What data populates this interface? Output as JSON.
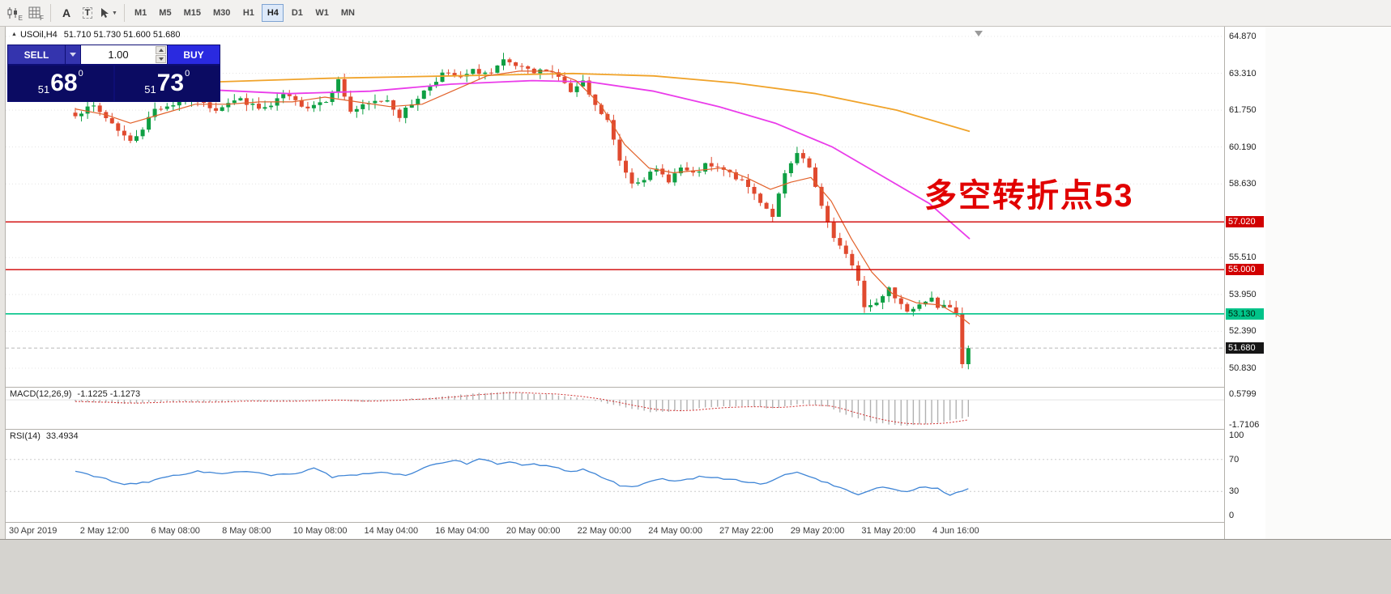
{
  "toolbar": {
    "tools": [
      {
        "id": "chart-template",
        "sub": "E"
      },
      {
        "id": "indicators",
        "sub": "F"
      },
      {
        "id": "text-tool",
        "glyph": "A"
      },
      {
        "id": "textbox-tool",
        "glyph": "T"
      },
      {
        "id": "cursor-tool",
        "caret": "▼"
      }
    ],
    "timeframes": [
      "M1",
      "M5",
      "M15",
      "M30",
      "H1",
      "H4",
      "D1",
      "W1",
      "MN"
    ],
    "active_timeframe": "H4"
  },
  "chart_header": {
    "marker": "▲",
    "symbol": "USOil,H4",
    "ohlc": "51.710 51.730 51.600 51.680"
  },
  "trade_panel": {
    "sell_label": "SELL",
    "buy_label": "BUY",
    "volume": "1.00",
    "sell_price": {
      "small": "51",
      "big": "68",
      "sup": "0"
    },
    "buy_price": {
      "small": "51",
      "big": "73",
      "sup": "0"
    }
  },
  "annotation": {
    "text": "多空转折点53",
    "color": "#e10000"
  },
  "price_axis": [
    {
      "label": "64.870",
      "value": 64.87,
      "type": "grid"
    },
    {
      "label": "63.310",
      "value": 63.31,
      "type": "grid"
    },
    {
      "label": "61.750",
      "value": 61.75,
      "type": "grid"
    },
    {
      "label": "60.190",
      "value": 60.19,
      "type": "grid"
    },
    {
      "label": "58.630",
      "value": 58.63,
      "type": "grid"
    },
    {
      "label": "57.020",
      "value": 57.02,
      "type": "line-red"
    },
    {
      "label": "55.510",
      "value": 55.51,
      "type": "grid"
    },
    {
      "label": "55.000",
      "value": 55.0,
      "type": "line-red"
    },
    {
      "label": "53.950",
      "value": 53.95,
      "type": "grid"
    },
    {
      "label": "53.130",
      "value": 53.13,
      "type": "line-green"
    },
    {
      "label": "52.390",
      "value": 52.39,
      "type": "grid"
    },
    {
      "label": "51.680",
      "value": 51.68,
      "type": "price"
    },
    {
      "label": "50.830",
      "value": 50.83,
      "type": "grid"
    }
  ],
  "indicator_panels": {
    "macd": {
      "label": "MACD(12,26,9)",
      "values": "-1.1225 -1.1273",
      "axis": [
        {
          "label": "0.5799",
          "v": 0.5799
        },
        {
          "label": "-1.7106",
          "v": -1.7106
        }
      ]
    },
    "rsi": {
      "label": "RSI(14)",
      "value": "33.4934",
      "axis": [
        {
          "label": "100",
          "v": 100
        },
        {
          "label": "70",
          "v": 70
        },
        {
          "label": "30",
          "v": 30
        },
        {
          "label": "0",
          "v": 0
        }
      ]
    }
  },
  "time_axis": [
    "30 Apr 2019",
    "2 May 12:00",
    "6 May 08:00",
    "8 May 08:00",
    "10 May 08:00",
    "14 May 04:00",
    "16 May 04:00",
    "20 May 00:00",
    "22 May 00:00",
    "24 May 00:00",
    "27 May 22:00",
    "29 May 20:00",
    "31 May 20:00",
    "4 Jun 16:00"
  ],
  "colors": {
    "up": "#0e9f43",
    "down": "#e04a2f",
    "ma_fast": "#e2622b",
    "ma_mid": "#ea3cea",
    "ma_slow": "#f0a32a",
    "hline_red": "#d10000",
    "hline_green": "#00c389",
    "macd_hist": "#b0b0b0",
    "macd_signal": "#d03030",
    "rsi_line": "#3f85d6",
    "annotation": "#e10000"
  },
  "chart_data": {
    "type": "candlestick",
    "symbol": "USOil",
    "timeframe": "H4",
    "ohlc_current": {
      "open": 51.71,
      "high": 51.73,
      "low": 51.6,
      "close": 51.68
    },
    "price_range": [
      50.83,
      64.87
    ],
    "candles": {
      "count": 147,
      "close_keypoints": [
        [
          0,
          61.6
        ],
        [
          3,
          61.9
        ],
        [
          6,
          61.2
        ],
        [
          9,
          60.4
        ],
        [
          11,
          61.0
        ],
        [
          13,
          61.8
        ],
        [
          16,
          62.0
        ],
        [
          19,
          62.3
        ],
        [
          21,
          62.0
        ],
        [
          23,
          61.8
        ],
        [
          25,
          62.1
        ],
        [
          27,
          62.2
        ],
        [
          30,
          61.8
        ],
        [
          32,
          61.9
        ],
        [
          34,
          62.4
        ],
        [
          36,
          62.1
        ],
        [
          38,
          61.9
        ],
        [
          41,
          62.2
        ],
        [
          43,
          63.0
        ],
        [
          45,
          61.7
        ],
        [
          47,
          61.9
        ],
        [
          49,
          62.1
        ],
        [
          51,
          62.2
        ],
        [
          53,
          61.5
        ],
        [
          56,
          62.3
        ],
        [
          58,
          62.8
        ],
        [
          60,
          63.3
        ],
        [
          63,
          63.1
        ],
        [
          65,
          63.4
        ],
        [
          68,
          63.3
        ],
        [
          70,
          63.8
        ],
        [
          72,
          63.6
        ],
        [
          75,
          63.3
        ],
        [
          77,
          63.5
        ],
        [
          79,
          63.2
        ],
        [
          81,
          62.5
        ],
        [
          83,
          62.9
        ],
        [
          85,
          61.9
        ],
        [
          87,
          61.3
        ],
        [
          89,
          59.6
        ],
        [
          91,
          58.7
        ],
        [
          93,
          58.9
        ],
        [
          95,
          59.2
        ],
        [
          97,
          58.8
        ],
        [
          99,
          59.3
        ],
        [
          101,
          59.0
        ],
        [
          103,
          59.4
        ],
        [
          106,
          59.2
        ],
        [
          108,
          58.9
        ],
        [
          110,
          58.5
        ],
        [
          112,
          57.9
        ],
        [
          114,
          57.3
        ],
        [
          116,
          59.0
        ],
        [
          118,
          59.9
        ],
        [
          120,
          59.3
        ],
        [
          122,
          57.6
        ],
        [
          124,
          56.4
        ],
        [
          126,
          55.6
        ],
        [
          128,
          54.6
        ],
        [
          129,
          53.4
        ],
        [
          131,
          53.6
        ],
        [
          133,
          54.3
        ],
        [
          134,
          53.8
        ],
        [
          136,
          53.3
        ],
        [
          138,
          53.6
        ],
        [
          140,
          53.9
        ],
        [
          141,
          53.3
        ],
        [
          143,
          53.5
        ],
        [
          144,
          53.2
        ],
        [
          145,
          51.0
        ],
        [
          146,
          51.68
        ]
      ]
    },
    "moving_averages": [
      {
        "name": "slow",
        "color_key": "ma_slow",
        "width": 1.8,
        "points": [
          [
            262,
            62.95
          ],
          [
            400,
            63.1
          ],
          [
            550,
            63.2
          ],
          [
            700,
            63.3
          ],
          [
            800,
            63.2
          ],
          [
            900,
            62.9
          ],
          [
            1000,
            62.45
          ],
          [
            1100,
            61.75
          ],
          [
            1190,
            60.85
          ]
        ]
      },
      {
        "name": "mid",
        "color_key": "ma_mid",
        "width": 1.8,
        "points": [
          [
            259,
            62.6
          ],
          [
            350,
            62.45
          ],
          [
            450,
            62.55
          ],
          [
            550,
            62.85
          ],
          [
            650,
            63.0
          ],
          [
            720,
            62.95
          ],
          [
            800,
            62.55
          ],
          [
            880,
            61.9
          ],
          [
            950,
            61.2
          ],
          [
            1020,
            60.2
          ],
          [
            1080,
            59.0
          ],
          [
            1140,
            57.8
          ],
          [
            1190,
            56.3
          ]
        ]
      },
      {
        "name": "fast",
        "color_key": "ma_fast",
        "width": 1.2,
        "points": [
          [
            86,
            61.8
          ],
          [
            124,
            61.55
          ],
          [
            154,
            61.2
          ],
          [
            194,
            61.6
          ],
          [
            234,
            62.0
          ],
          [
            274,
            62.0
          ],
          [
            314,
            62.1
          ],
          [
            354,
            62.1
          ],
          [
            394,
            62.3
          ],
          [
            434,
            62.1
          ],
          [
            474,
            61.9
          ],
          [
            514,
            62.0
          ],
          [
            554,
            62.6
          ],
          [
            594,
            63.2
          ],
          [
            634,
            63.4
          ],
          [
            674,
            63.4
          ],
          [
            704,
            63.0
          ],
          [
            734,
            62.0
          ],
          [
            764,
            60.3
          ],
          [
            794,
            59.3
          ],
          [
            824,
            59.1
          ],
          [
            854,
            59.2
          ],
          [
            884,
            59.3
          ],
          [
            914,
            58.9
          ],
          [
            944,
            58.4
          ],
          [
            969,
            58.7
          ],
          [
            994,
            58.9
          ],
          [
            1019,
            57.9
          ],
          [
            1044,
            56.3
          ],
          [
            1069,
            54.9
          ],
          [
            1094,
            54.0
          ],
          [
            1124,
            53.6
          ],
          [
            1154,
            53.5
          ],
          [
            1179,
            53.0
          ],
          [
            1190,
            52.7
          ]
        ]
      }
    ],
    "horizontal_lines": [
      {
        "price": 57.02,
        "color": "red"
      },
      {
        "price": 55.0,
        "color": "red"
      },
      {
        "price": 53.13,
        "color": "green"
      }
    ],
    "current_price": 51.68,
    "indicators": [
      {
        "name": "MACD",
        "params": "12,26,9",
        "values": [
          -1.1225,
          -1.1273
        ],
        "range": [
          0.5799,
          -1.7106
        ],
        "keypoints": [
          [
            0,
            -0.1
          ],
          [
            8,
            -0.25
          ],
          [
            14,
            -0.1
          ],
          [
            21,
            -0.15
          ],
          [
            28,
            -0.05
          ],
          [
            34,
            -0.1
          ],
          [
            41,
            0.0
          ],
          [
            47,
            -0.1
          ],
          [
            54,
            0.05
          ],
          [
            61,
            0.25
          ],
          [
            67,
            0.45
          ],
          [
            70,
            0.55
          ],
          [
            74,
            0.4
          ],
          [
            78,
            0.35
          ],
          [
            83,
            0.1
          ],
          [
            89,
            -0.4
          ],
          [
            94,
            -0.8
          ],
          [
            99,
            -0.7
          ],
          [
            104,
            -0.45
          ],
          [
            110,
            -0.4
          ],
          [
            114,
            -0.55
          ],
          [
            119,
            -0.25
          ],
          [
            123,
            -0.45
          ],
          [
            127,
            -1.1
          ],
          [
            131,
            -1.5
          ],
          [
            135,
            -1.65
          ],
          [
            139,
            -1.55
          ],
          [
            143,
            -1.35
          ],
          [
            146,
            -1.12
          ]
        ]
      },
      {
        "name": "RSI",
        "params": "14",
        "value": 33.4934,
        "levels": [
          70,
          30
        ],
        "range": [
          0,
          100
        ],
        "keypoints": [
          [
            0,
            55
          ],
          [
            4,
            48
          ],
          [
            8,
            38
          ],
          [
            12,
            42
          ],
          [
            16,
            50
          ],
          [
            20,
            55
          ],
          [
            24,
            52
          ],
          [
            28,
            55
          ],
          [
            32,
            50
          ],
          [
            36,
            52
          ],
          [
            39,
            60
          ],
          [
            42,
            48
          ],
          [
            46,
            50
          ],
          [
            50,
            55
          ],
          [
            54,
            50
          ],
          [
            58,
            62
          ],
          [
            62,
            68
          ],
          [
            64,
            65
          ],
          [
            66,
            70
          ],
          [
            69,
            65
          ],
          [
            71,
            68
          ],
          [
            73,
            62
          ],
          [
            75,
            64
          ],
          [
            78,
            60
          ],
          [
            81,
            55
          ],
          [
            83,
            58
          ],
          [
            86,
            48
          ],
          [
            89,
            38
          ],
          [
            91,
            36
          ],
          [
            94,
            42
          ],
          [
            96,
            45
          ],
          [
            99,
            43
          ],
          [
            102,
            48
          ],
          [
            104,
            47
          ],
          [
            107,
            46
          ],
          [
            110,
            42
          ],
          [
            112,
            38
          ],
          [
            115,
            48
          ],
          [
            118,
            55
          ],
          [
            120,
            48
          ],
          [
            123,
            40
          ],
          [
            126,
            32
          ],
          [
            128,
            26
          ],
          [
            131,
            35
          ],
          [
            134,
            33
          ],
          [
            136,
            30
          ],
          [
            139,
            36
          ],
          [
            141,
            34
          ],
          [
            143,
            25
          ],
          [
            146,
            33.5
          ]
        ]
      }
    ]
  }
}
